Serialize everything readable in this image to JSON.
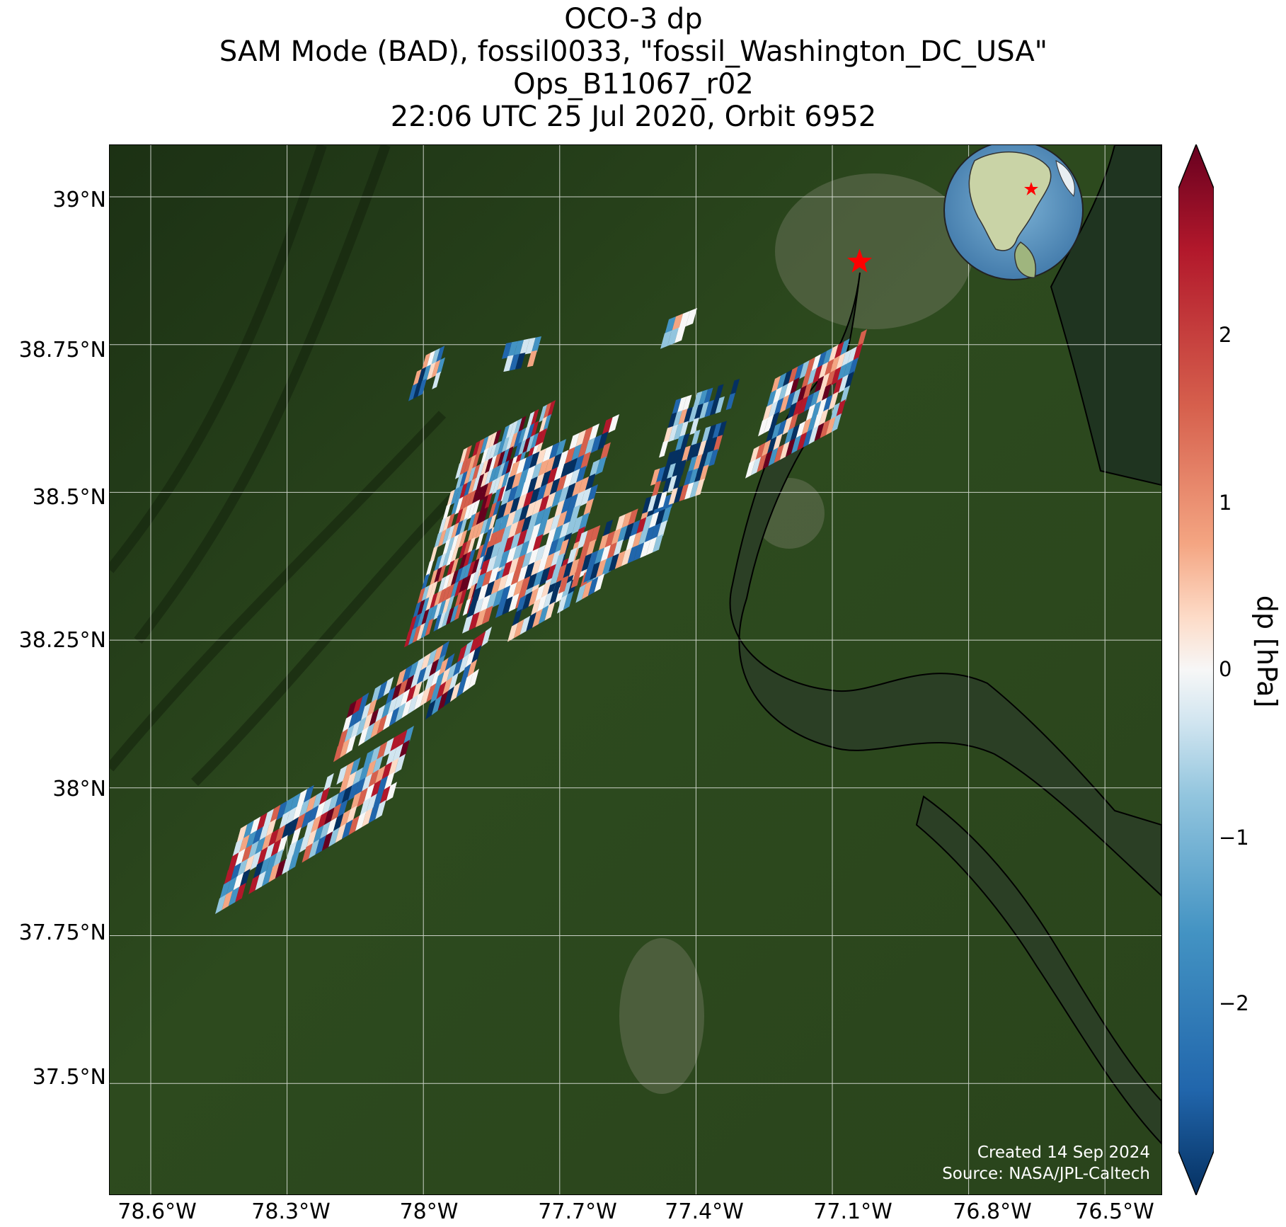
{
  "title": {
    "line1": "OCO-3 dp",
    "line2": "SAM Mode (BAD), fossil0033, \"fossil_Washington_DC_USA\"",
    "line3": "Ops_B11067_r02",
    "line4": "22:06 UTC 25 Jul 2020, Orbit 6952"
  },
  "map": {
    "lon_range": [
      -78.72,
      -76.43
    ],
    "lat_range": [
      37.3,
      39.1
    ],
    "x_ticks": [
      "78.6°W",
      "78.3°W",
      "78°W",
      "77.7°W",
      "77.4°W",
      "77.1°W",
      "76.8°W",
      "76.5°W"
    ],
    "y_ticks": [
      "39°N",
      "38.75°N",
      "38.5°N",
      "38.25°N",
      "38°N",
      "37.75°N",
      "37.5°N"
    ],
    "target_marker": {
      "icon": "red-star-icon",
      "lon": -77.04,
      "lat": 38.89,
      "color": "#ff0000"
    },
    "basemap": "satellite imagery (dark green vegetation)",
    "inset_globe": {
      "icon": "globe-icon",
      "marker_color": "#ff0000"
    },
    "colormap": "RdBu_r",
    "colors": {
      "negative": "#053061",
      "neutral": "#f7f7f7",
      "positive": "#67001f"
    }
  },
  "colorbar": {
    "label": "dp [hPa]",
    "ticks": [
      "2",
      "1",
      "0",
      "−1",
      "−2"
    ],
    "range": [
      -3,
      3
    ]
  },
  "credits": {
    "created": "Created 14 Sep 2024",
    "source": "Source: NASA/JPL-Caltech"
  }
}
